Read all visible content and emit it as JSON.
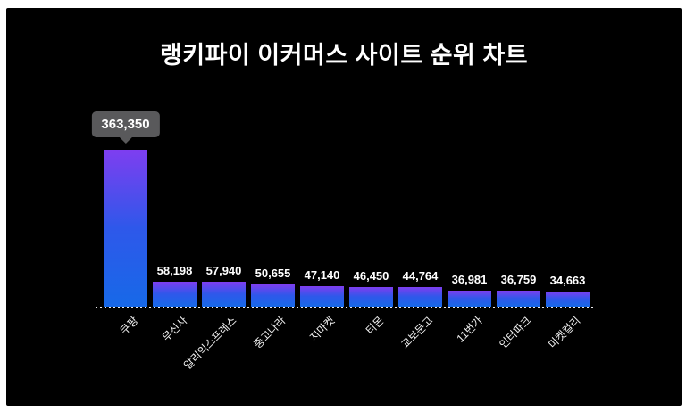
{
  "page": {
    "background": "#ffffff",
    "panel_background": "#000000",
    "text_color": "#ffffff"
  },
  "tooltip": {
    "value": "363,350",
    "background": "#59595b",
    "text_color": "#ffffff"
  },
  "chart_data": {
    "type": "bar",
    "title": "랭키파이 이커머스 사이트 순위 차트",
    "categories": [
      "쿠팡",
      "무신사",
      "알리익스프레스",
      "중고나라",
      "지마켓",
      "티몬",
      "교보문고",
      "11번가",
      "인터파크",
      "마켓컬리"
    ],
    "values": [
      363350,
      58198,
      57940,
      50655,
      47140,
      46450,
      44764,
      36981,
      36759,
      34663
    ],
    "value_labels": [
      "363,350",
      "58,198",
      "57,940",
      "50,655",
      "47,140",
      "46,450",
      "44,764",
      "36,981",
      "36,759",
      "34,663"
    ],
    "highlighted_index": 0,
    "xlabel": "",
    "ylabel": "",
    "ylim": [
      0,
      363350
    ],
    "grid": false,
    "legend": false,
    "baseline_style": "dashed-white",
    "bar_gradient": [
      "#7e3ef0",
      "#2e58ea",
      "#1769e8"
    ],
    "label_color": "#ffffff",
    "axis_label_color": "#f2f2f2"
  }
}
